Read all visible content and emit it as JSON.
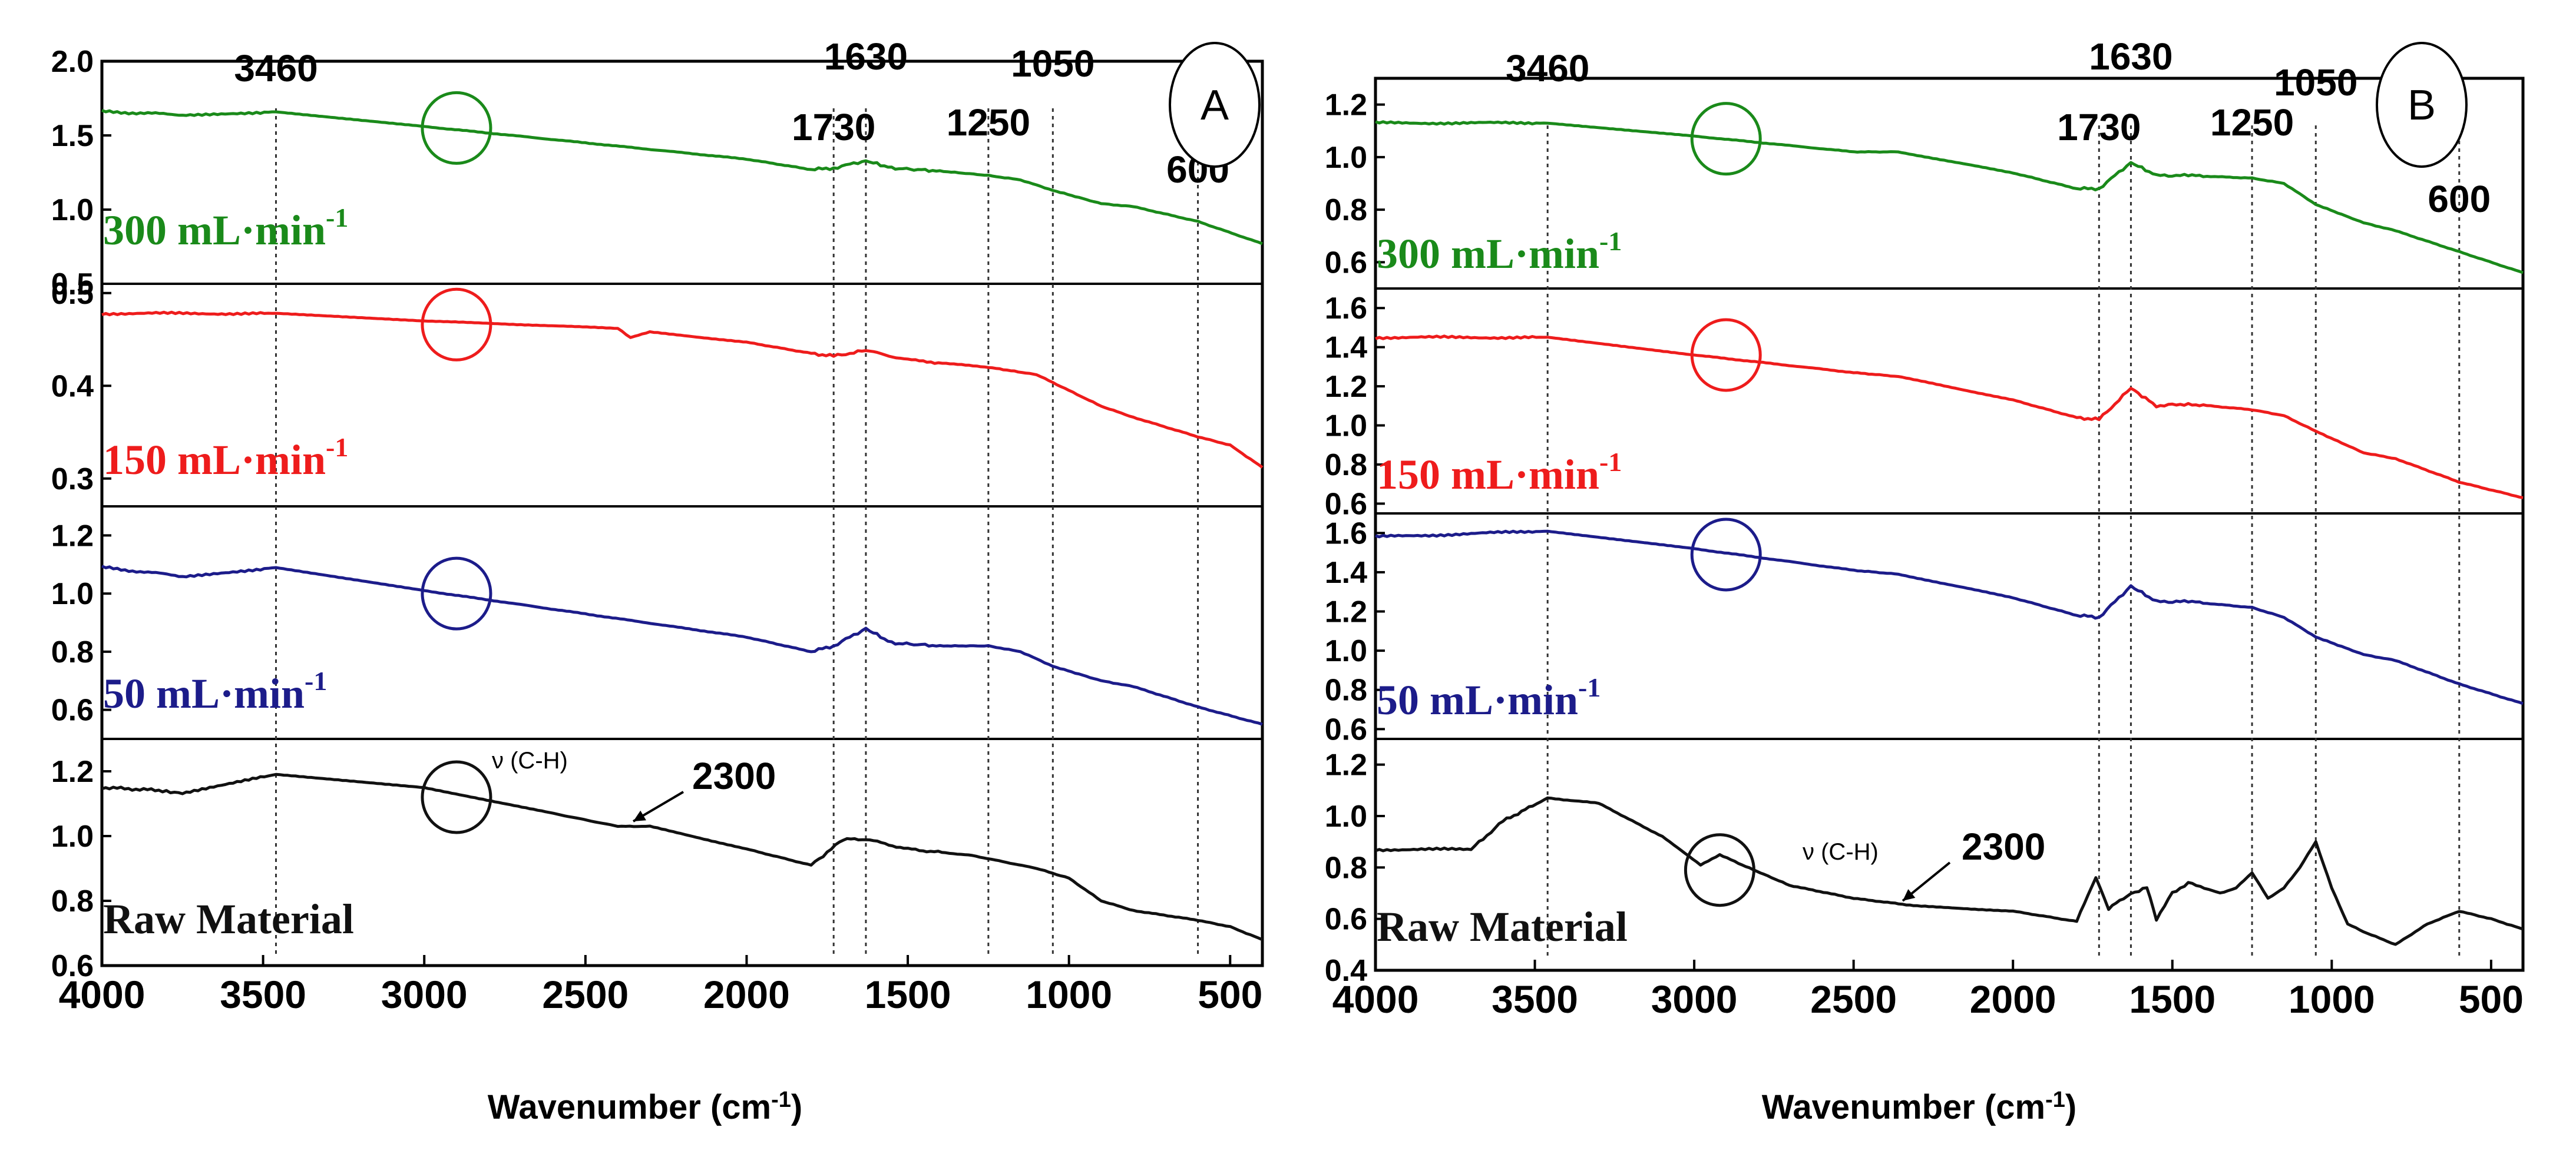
{
  "figure": {
    "axis_title_main": "Wavenumber (cm",
    "axis_title_sup": "-1",
    "axis_title_end": ")"
  },
  "chart_data": [
    {
      "panel": "A",
      "type": "line",
      "xlabel": "Wavenumber (cm-1)",
      "xlim": [
        4000,
        400
      ],
      "x_ticks": [
        4000,
        3500,
        3000,
        2500,
        2000,
        1500,
        1000,
        500
      ],
      "peak_lines": [
        3460,
        1730,
        1630,
        1250,
        1050,
        600
      ],
      "peak_labels": [
        {
          "text": "3460",
          "x": 3460
        },
        {
          "text": "1730",
          "x": 1730
        },
        {
          "text": "1630",
          "x": 1630
        },
        {
          "text": "1250",
          "x": 1250
        },
        {
          "text": "1050",
          "x": 1050
        },
        {
          "text": "600",
          "x": 600
        }
      ],
      "panels": [
        {
          "name": "300 mL·min-1",
          "label": "300 mL·min",
          "label_sup": "-1",
          "color": "#1a8a1a",
          "ylim": [
            0.5,
            2.0
          ],
          "y_ticks": [
            "0.5",
            "1.0",
            "1.5",
            "2.0"
          ],
          "circle_x": 2900,
          "circle_y": 1.55,
          "points": [
            [
              4000,
              1.66
            ],
            [
              3750,
              1.64
            ],
            [
              3460,
              1.66
            ],
            [
              3000,
              1.56
            ],
            [
              2500,
              1.45
            ],
            [
              2000,
              1.34
            ],
            [
              1800,
              1.27
            ],
            [
              1730,
              1.28
            ],
            [
              1630,
              1.33
            ],
            [
              1550,
              1.28
            ],
            [
              1400,
              1.26
            ],
            [
              1250,
              1.23
            ],
            [
              1150,
              1.2
            ],
            [
              1050,
              1.13
            ],
            [
              900,
              1.04
            ],
            [
              800,
              1.02
            ],
            [
              600,
              0.92
            ],
            [
              400,
              0.77
            ]
          ]
        },
        {
          "name": "150 mL·min-1",
          "label": "150 mL·min",
          "label_sup": "-1",
          "color": "#ee1c1c",
          "ylim": [
            0.27,
            0.51
          ],
          "y_ticks": [
            "0.3",
            "0.4",
            "0.5"
          ],
          "circle_x": 2900,
          "circle_y": 0.466,
          "points": [
            [
              4000,
              0.478
            ],
            [
              3460,
              0.478
            ],
            [
              3000,
              0.47
            ],
            [
              2400,
              0.462
            ],
            [
              2360,
              0.452
            ],
            [
              2300,
              0.458
            ],
            [
              2000,
              0.447
            ],
            [
              1800,
              0.435
            ],
            [
              1730,
              0.432
            ],
            [
              1630,
              0.438
            ],
            [
              1500,
              0.428
            ],
            [
              1250,
              0.42
            ],
            [
              1100,
              0.412
            ],
            [
              1000,
              0.395
            ],
            [
              900,
              0.378
            ],
            [
              800,
              0.366
            ],
            [
              600,
              0.345
            ],
            [
              500,
              0.336
            ],
            [
              400,
              0.312
            ]
          ]
        },
        {
          "name": "50 mL·min-1",
          "label": "50 mL·min",
          "label_sup": "-1",
          "color": "#1c1c8a",
          "ylim": [
            0.5,
            1.3
          ],
          "y_ticks": [
            "0.6",
            "0.8",
            "1.0",
            "1.2"
          ],
          "circle_x": 2900,
          "circle_y": 1.0,
          "points": [
            [
              4000,
              1.09
            ],
            [
              3750,
              1.06
            ],
            [
              3460,
              1.09
            ],
            [
              3000,
              1.01
            ],
            [
              2500,
              0.93
            ],
            [
              2000,
              0.85
            ],
            [
              1800,
              0.8
            ],
            [
              1730,
              0.82
            ],
            [
              1630,
              0.88
            ],
            [
              1550,
              0.83
            ],
            [
              1400,
              0.82
            ],
            [
              1250,
              0.82
            ],
            [
              1150,
              0.8
            ],
            [
              1050,
              0.75
            ],
            [
              900,
              0.7
            ],
            [
              800,
              0.68
            ],
            [
              600,
              0.61
            ],
            [
              400,
              0.55
            ]
          ]
        },
        {
          "name": "Raw Material",
          "label": "Raw Material",
          "label_sup": "",
          "color": "#111111",
          "ylim": [
            0.6,
            1.3
          ],
          "y_ticks": [
            "0.6",
            "0.8",
            "1.0",
            "1.2"
          ],
          "circle_x": 2900,
          "circle_y": 1.12,
          "points": [
            [
              4000,
              1.15
            ],
            [
              3800,
              1.14
            ],
            [
              3750,
              1.13
            ],
            [
              3460,
              1.19
            ],
            [
              3000,
              1.15
            ],
            [
              2600,
              1.07
            ],
            [
              2400,
              1.03
            ],
            [
              2300,
              1.03
            ],
            [
              2000,
              0.96
            ],
            [
              1800,
              0.91
            ],
            [
              1700,
              0.99
            ],
            [
              1630,
              0.99
            ],
            [
              1500,
              0.96
            ],
            [
              1300,
              0.94
            ],
            [
              1100,
              0.9
            ],
            [
              1000,
              0.87
            ],
            [
              900,
              0.8
            ],
            [
              800,
              0.77
            ],
            [
              600,
              0.74
            ],
            [
              500,
              0.72
            ],
            [
              400,
              0.68
            ]
          ]
        }
      ],
      "annotations": {
        "vch": "ν (C-H)",
        "co2": "2300",
        "co2_x": 2300
      }
    },
    {
      "panel": "B",
      "type": "line",
      "xlabel": "Wavenumber (cm-1)",
      "xlim": [
        4000,
        400
      ],
      "x_ticks": [
        4000,
        3500,
        3000,
        2500,
        2000,
        1500,
        1000,
        500
      ],
      "peak_lines": [
        3460,
        1730,
        1630,
        1250,
        1050,
        600
      ],
      "peak_labels": [
        {
          "text": "3460",
          "x": 3460
        },
        {
          "text": "1730",
          "x": 1730
        },
        {
          "text": "1630",
          "x": 1630
        },
        {
          "text": "1250",
          "x": 1250
        },
        {
          "text": "1050",
          "x": 1050
        },
        {
          "text": "600",
          "x": 600
        }
      ],
      "panels": [
        {
          "name": "300 mL·min-1",
          "label": "300 mL·min",
          "label_sup": "-1",
          "color": "#1a8a1a",
          "ylim": [
            0.5,
            1.3
          ],
          "y_ticks": [
            "0.6",
            "0.8",
            "1.0",
            "1.2"
          ],
          "circle_x": 2900,
          "circle_y": 1.07,
          "points": [
            [
              4000,
              1.13
            ],
            [
              3460,
              1.13
            ],
            [
              3000,
              1.08
            ],
            [
              2500,
              1.02
            ],
            [
              2360,
              1.02
            ],
            [
              2000,
              0.94
            ],
            [
              1800,
              0.88
            ],
            [
              1730,
              0.88
            ],
            [
              1630,
              0.98
            ],
            [
              1550,
              0.93
            ],
            [
              1450,
              0.93
            ],
            [
              1250,
              0.92
            ],
            [
              1150,
              0.9
            ],
            [
              1050,
              0.82
            ],
            [
              900,
              0.75
            ],
            [
              800,
              0.72
            ],
            [
              600,
              0.64
            ],
            [
              400,
              0.56
            ]
          ]
        },
        {
          "name": "150 mL·min-1",
          "label": "150 mL·min",
          "label_sup": "-1",
          "color": "#ee1c1c",
          "ylim": [
            0.55,
            1.7
          ],
          "y_ticks": [
            "0.6",
            "0.8",
            "1.0",
            "1.2",
            "1.4",
            "1.6"
          ],
          "circle_x": 2900,
          "circle_y": 1.36,
          "points": [
            [
              4000,
              1.45
            ],
            [
              3460,
              1.45
            ],
            [
              3000,
              1.36
            ],
            [
              2500,
              1.27
            ],
            [
              2360,
              1.25
            ],
            [
              2000,
              1.13
            ],
            [
              1800,
              1.04
            ],
            [
              1730,
              1.03
            ],
            [
              1630,
              1.19
            ],
            [
              1550,
              1.1
            ],
            [
              1450,
              1.11
            ],
            [
              1250,
              1.08
            ],
            [
              1150,
              1.05
            ],
            [
              1050,
              0.97
            ],
            [
              900,
              0.86
            ],
            [
              800,
              0.83
            ],
            [
              600,
              0.71
            ],
            [
              400,
              0.63
            ]
          ]
        },
        {
          "name": "50 mL·min-1",
          "label": "50 mL·min",
          "label_sup": "-1",
          "color": "#1c1c8a",
          "ylim": [
            0.55,
            1.7
          ],
          "y_ticks": [
            "0.6",
            "0.8",
            "1.0",
            "1.2",
            "1.4",
            "1.6"
          ],
          "circle_x": 2900,
          "circle_y": 1.49,
          "points": [
            [
              4000,
              1.58
            ],
            [
              3460,
              1.61
            ],
            [
              3000,
              1.52
            ],
            [
              2500,
              1.41
            ],
            [
              2360,
              1.39
            ],
            [
              2000,
              1.27
            ],
            [
              1800,
              1.18
            ],
            [
              1730,
              1.17
            ],
            [
              1630,
              1.33
            ],
            [
              1550,
              1.25
            ],
            [
              1450,
              1.25
            ],
            [
              1250,
              1.22
            ],
            [
              1150,
              1.17
            ],
            [
              1050,
              1.07
            ],
            [
              900,
              0.98
            ],
            [
              800,
              0.95
            ],
            [
              600,
              0.83
            ],
            [
              400,
              0.73
            ]
          ]
        },
        {
          "name": "Raw Material",
          "label": "Raw Material",
          "label_sup": "",
          "color": "#111111",
          "ylim": [
            0.4,
            1.3
          ],
          "y_ticks": [
            "0.4",
            "0.6",
            "0.8",
            "1.0",
            "1.2"
          ],
          "circle_x": 2920,
          "circle_y": 0.79,
          "points": [
            [
              4000,
              0.87
            ],
            [
              3700,
              0.87
            ],
            [
              3600,
              0.98
            ],
            [
              3460,
              1.07
            ],
            [
              3300,
              1.05
            ],
            [
              3100,
              0.92
            ],
            [
              2980,
              0.81
            ],
            [
              2920,
              0.85
            ],
            [
              2850,
              0.81
            ],
            [
              2700,
              0.73
            ],
            [
              2500,
              0.68
            ],
            [
              2300,
              0.65
            ],
            [
              2000,
              0.63
            ],
            [
              1800,
              0.59
            ],
            [
              1740,
              0.76
            ],
            [
              1700,
              0.64
            ],
            [
              1630,
              0.7
            ],
            [
              1580,
              0.72
            ],
            [
              1550,
              0.6
            ],
            [
              1500,
              0.7
            ],
            [
              1450,
              0.74
            ],
            [
              1400,
              0.72
            ],
            [
              1350,
              0.7
            ],
            [
              1300,
              0.72
            ],
            [
              1250,
              0.78
            ],
            [
              1200,
              0.68
            ],
            [
              1150,
              0.72
            ],
            [
              1100,
              0.8
            ],
            [
              1050,
              0.9
            ],
            [
              1000,
              0.72
            ],
            [
              950,
              0.58
            ],
            [
              900,
              0.55
            ],
            [
              800,
              0.5
            ],
            [
              700,
              0.58
            ],
            [
              600,
              0.63
            ],
            [
              500,
              0.6
            ],
            [
              400,
              0.56
            ]
          ]
        }
      ],
      "annotations": {
        "vch": "ν (C-H)",
        "co2": "2300",
        "co2_x": 2300
      }
    }
  ]
}
